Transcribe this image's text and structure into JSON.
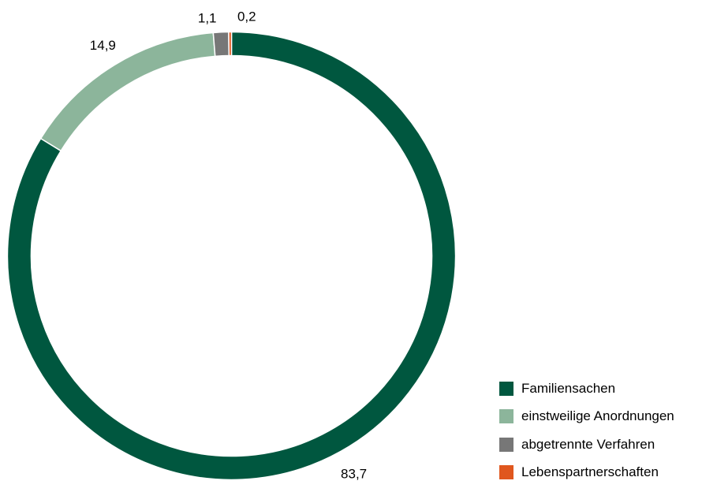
{
  "chart_data": {
    "type": "pie",
    "variant": "donut",
    "decimal_separator": ",",
    "categories": [
      "Familiensachen",
      "einstweilige Anordnungen",
      "abgetrennte Verfahren",
      "Lebenspartnerschaften"
    ],
    "values": [
      83.7,
      14.9,
      1.1,
      0.2
    ],
    "value_labels": [
      "83,7",
      "14,9",
      "1,1",
      "0,2"
    ],
    "colors": [
      "#00573f",
      "#8cb59b",
      "#777777",
      "#e0571e"
    ],
    "legend": {
      "position": "bottom-right",
      "entries": [
        "Familiensachen",
        "einstweilige Anordnungen",
        "abgetrennte Verfahren",
        "Lebenspartnerschaften"
      ]
    },
    "title": ""
  }
}
